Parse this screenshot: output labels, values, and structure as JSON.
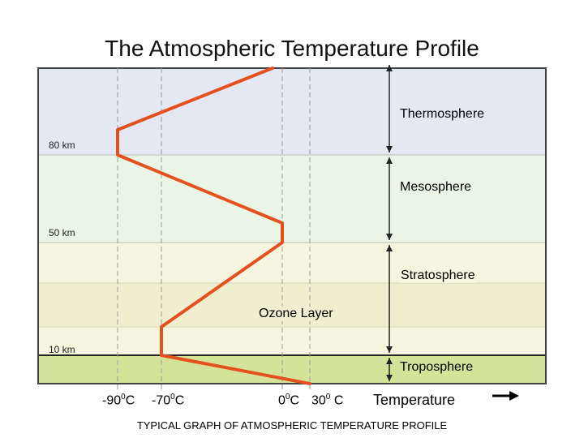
{
  "title": "The Atmospheric Temperature Profile",
  "layers": [
    {
      "name": "Thermosphere",
      "color": "#e3e8f3"
    },
    {
      "name": "Mesosphere",
      "color": "#e9f6e6"
    },
    {
      "name": "Stratosphere",
      "color": "#f6f5df"
    },
    {
      "name": "Ozone Layer",
      "color": "#efefcf"
    },
    {
      "name": "Troposphere",
      "color": "#d4e39a"
    }
  ],
  "altitude_labels": {
    "top": "80 km",
    "mid": "50 km",
    "low": "10 km"
  },
  "temperature_ticks": [
    {
      "value": "-90",
      "unit": "C",
      "sup": "0"
    },
    {
      "value": "-70",
      "unit": "C",
      "sup": "0"
    },
    {
      "value": "0",
      "unit": "C",
      "sup": "0"
    },
    {
      "value": "30",
      "unit": "C",
      "sup": "0"
    }
  ],
  "x_axis_title": "Temperature",
  "caption": "TYPICAL GRAPH OF ATMOSPHERIC TEMPERATURE PROFILE",
  "colors": {
    "profile_line": "#e5501f",
    "frame": "#222222",
    "guide": "#999999"
  }
}
